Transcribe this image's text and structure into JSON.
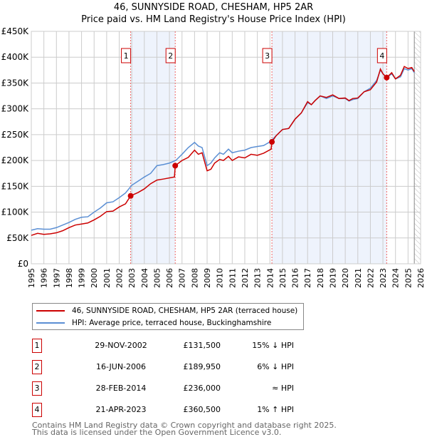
{
  "chart_data": {
    "type": "line",
    "title": "46, SUNNYSIDE ROAD, CHESHAM, HP5 2AR",
    "subtitle": "Price paid vs. HM Land Registry's House Price Index (HPI)",
    "xlim": [
      1995,
      2026
    ],
    "ylim": [
      0,
      450000
    ],
    "yticks": [
      0,
      50000,
      100000,
      150000,
      200000,
      250000,
      300000,
      350000,
      400000,
      450000
    ],
    "ytick_labels": [
      "£0",
      "£50K",
      "£100K",
      "£150K",
      "£200K",
      "£250K",
      "£300K",
      "£350K",
      "£400K",
      "£450K"
    ],
    "xticks": [
      1995,
      1996,
      1997,
      1998,
      1999,
      2000,
      2001,
      2002,
      2003,
      2004,
      2005,
      2006,
      2007,
      2008,
      2009,
      2010,
      2011,
      2012,
      2013,
      2014,
      2015,
      2016,
      2017,
      2018,
      2019,
      2020,
      2021,
      2022,
      2023,
      2024,
      2025,
      2026
    ],
    "grid": true,
    "colors": {
      "price": "#cc0000",
      "hpi": "#5b8fd4",
      "shade": "#eef3fc"
    },
    "series": [
      {
        "name": "46, SUNNYSIDE ROAD, CHESHAM, HP5 2AR (terraced house)",
        "color": "#cc0000",
        "x": [
          1995,
          1995.5,
          1996,
          1996.5,
          1997,
          1997.5,
          1998,
          1998.5,
          1999,
          1999.5,
          2000,
          2000.5,
          2001,
          2001.5,
          2002,
          2002.5,
          2002.91,
          2003.5,
          2004,
          2004.5,
          2005,
          2005.5,
          2006.4,
          2006.46,
          2007,
          2007.5,
          2008,
          2008.3,
          2008.6,
          2009,
          2009.3,
          2009.6,
          2010,
          2010.3,
          2010.7,
          2011,
          2011.5,
          2012,
          2012.5,
          2013,
          2013.5,
          2014.1,
          2014.16,
          2014.5,
          2015,
          2015.5,
          2016,
          2016.5,
          2017,
          2017.3,
          2017.6,
          2018,
          2018.5,
          2019,
          2019.5,
          2020,
          2020.3,
          2020.6,
          2021,
          2021.5,
          2022,
          2022.5,
          2022.8,
          2023,
          2023.3,
          2023.7,
          2024,
          2024.4,
          2024.7,
          2025,
          2025.3,
          2025.5
        ],
        "y": [
          55,
          59,
          57,
          58,
          60,
          64,
          70,
          75,
          77,
          79,
          85,
          92,
          101,
          102,
          110,
          116,
          131.5,
          138,
          145,
          155,
          162,
          164,
          168,
          190,
          200,
          206,
          220,
          212,
          215,
          180,
          183,
          195,
          202,
          200,
          208,
          200,
          207,
          205,
          212,
          210,
          214,
          222,
          236,
          248,
          260,
          262,
          280,
          292,
          314,
          308,
          316,
          325,
          322,
          327,
          320,
          321,
          316,
          320,
          321,
          333,
          337,
          352,
          377,
          368,
          360.5,
          370,
          358,
          365,
          382,
          378,
          380,
          372
        ]
      },
      {
        "name": "HPI: Average price, terraced house, Buckinghamshire",
        "color": "#5b8fd4",
        "x": [
          1995,
          1995.5,
          1996,
          1996.5,
          1997,
          1997.5,
          1998,
          1998.5,
          1999,
          1999.5,
          2000,
          2000.5,
          2001,
          2001.5,
          2002,
          2002.5,
          2003,
          2003.5,
          2004,
          2004.5,
          2005,
          2005.5,
          2006,
          2006.5,
          2007,
          2007.5,
          2008,
          2008.3,
          2008.6,
          2009,
          2009.3,
          2009.6,
          2010,
          2010.3,
          2010.7,
          2011,
          2011.5,
          2012,
          2012.5,
          2013,
          2013.5,
          2014,
          2014.5,
          2015,
          2015.5,
          2016,
          2016.5,
          2017,
          2017.3,
          2017.6,
          2018,
          2018.5,
          2019,
          2019.5,
          2020,
          2020.3,
          2020.6,
          2021,
          2021.5,
          2022,
          2022.5,
          2022.8,
          2023,
          2023.3,
          2023.7,
          2024,
          2024.4,
          2024.7,
          2025,
          2025.3,
          2025.5
        ],
        "y": [
          65,
          68,
          67,
          67,
          70,
          75,
          80,
          86,
          90,
          91,
          100,
          108,
          118,
          120,
          128,
          137,
          152,
          160,
          168,
          175,
          190,
          192,
          195,
          200,
          212,
          225,
          235,
          228,
          225,
          190,
          195,
          205,
          215,
          212,
          222,
          215,
          218,
          220,
          225,
          227,
          229,
          236,
          248,
          260,
          262,
          280,
          292,
          312,
          308,
          316,
          325,
          320,
          325,
          320,
          320,
          315,
          318,
          320,
          333,
          340,
          355,
          375,
          368,
          360,
          368,
          358,
          362,
          378,
          375,
          378,
          370
        ]
      }
    ],
    "shaded_ranges": [
      [
        2002.91,
        2006.46
      ],
      [
        2014.16,
        2023.3
      ]
    ],
    "forecast_hatch_from": 2025.5,
    "sales": [
      {
        "num": "1",
        "x": 2002.91,
        "y": 131.5
      },
      {
        "num": "2",
        "x": 2006.46,
        "y": 189.95
      },
      {
        "num": "3",
        "x": 2014.16,
        "y": 236
      },
      {
        "num": "4",
        "x": 2023.3,
        "y": 360.5
      }
    ]
  },
  "legend": {
    "price": "46, SUNNYSIDE ROAD, CHESHAM, HP5 2AR (terraced house)",
    "hpi": "HPI: Average price, terraced house, Buckinghamshire"
  },
  "transactions": [
    {
      "num": "1",
      "date": "29-NOV-2002",
      "price": "£131,500",
      "hpi": "15% ↓ HPI"
    },
    {
      "num": "2",
      "date": "16-JUN-2006",
      "price": "£189,950",
      "hpi": "6% ↓ HPI"
    },
    {
      "num": "3",
      "date": "28-FEB-2014",
      "price": "£236,000",
      "hpi": "≈ HPI"
    },
    {
      "num": "4",
      "date": "21-APR-2023",
      "price": "£360,500",
      "hpi": "1% ↑ HPI"
    }
  ],
  "footer": [
    "Contains HM Land Registry data © Crown copyright and database right 2025.",
    "This data is licensed under the Open Government Licence v3.0."
  ]
}
